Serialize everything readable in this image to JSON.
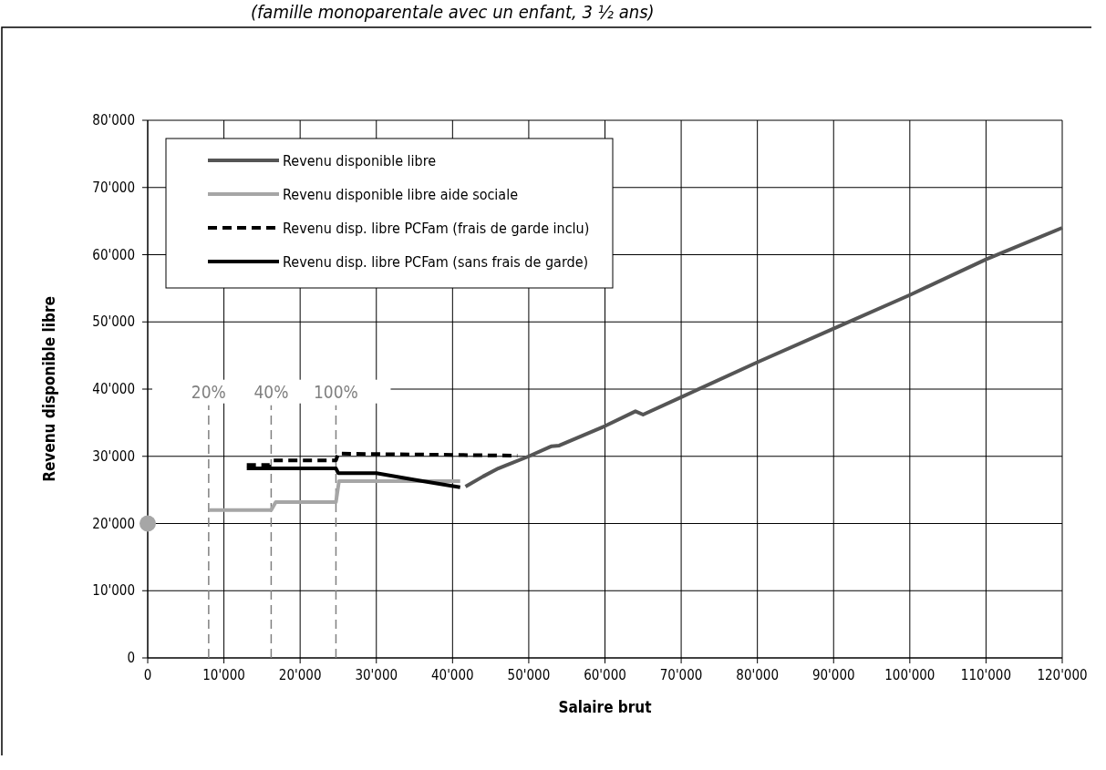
{
  "chart_data": {
    "type": "line",
    "title": "(famille monoparentale avec un enfant, 3 ½ ans)",
    "xlabel": "Salaire brut",
    "ylabel": "Revenu disponible libre",
    "xlim": [
      0,
      120000
    ],
    "xticks": [
      {
        "value": 0,
        "label": "0"
      },
      {
        "value": 10000,
        "label": "10'000"
      },
      {
        "value": 20000,
        "label": "20'000"
      },
      {
        "value": 30000,
        "label": "30'000"
      },
      {
        "value": 40000,
        "label": "40'000"
      },
      {
        "value": 50000,
        "label": "50'000"
      },
      {
        "value": 60000,
        "label": "60'000"
      },
      {
        "value": 70000,
        "label": "70'000"
      },
      {
        "value": 80000,
        "label": "80'000"
      },
      {
        "value": 90000,
        "label": "90'000"
      },
      {
        "value": 100000,
        "label": "100'000"
      },
      {
        "value": 110000,
        "label": "110'000"
      },
      {
        "value": 120000,
        "label": "120'000"
      }
    ],
    "ylim": [
      0,
      80000
    ],
    "yticks": [
      {
        "value": 0,
        "label": "0"
      },
      {
        "value": 10000,
        "label": "10'000"
      },
      {
        "value": 20000,
        "label": "20'000"
      },
      {
        "value": 30000,
        "label": "30'000"
      },
      {
        "value": 40000,
        "label": "40'000"
      },
      {
        "value": 50000,
        "label": "50'000"
      },
      {
        "value": 60000,
        "label": "60'000"
      },
      {
        "value": 70000,
        "label": "70'000"
      },
      {
        "value": 80000,
        "label": "80'000"
      }
    ],
    "grid": true,
    "legend": "top left",
    "marker": "none",
    "series": [
      {
        "name": "Revenu disponible libre",
        "color": "#555555",
        "x": [
          41700,
          44000,
          46000,
          50000,
          53000,
          54000,
          60000,
          64000,
          65000,
          70000,
          80000,
          90000,
          100000,
          110000,
          120000
        ],
        "values": [
          25500,
          27000,
          28200,
          30000,
          31500,
          31600,
          34500,
          36700,
          36200,
          38800,
          44000,
          49000,
          54000,
          59300,
          64000
        ]
      },
      {
        "name": "Revenu disponible libre aide sociale",
        "color": "#a6a6a6",
        "x": [
          8000,
          16200,
          16800,
          24700,
          25100,
          41000
        ],
        "values": [
          22000,
          22000,
          23200,
          23200,
          26300,
          26300
        ]
      },
      {
        "name": "Revenu disp. libre PCFam (frais de garde inclu)",
        "color": "#000000",
        "line_style": "dashed",
        "x": [
          13000,
          16000,
          16500,
          24700,
          25000,
          48500
        ],
        "values": [
          28700,
          28700,
          29400,
          29400,
          30400,
          30100
        ]
      },
      {
        "name": "Revenu disp. libre PCFam (sans frais de garde)",
        "color": "#000000",
        "x": [
          13000,
          24700,
          25000,
          30000,
          35000,
          41000
        ],
        "values": [
          28200,
          28200,
          27500,
          27500,
          26500,
          25400
        ]
      },
      {
        "type": "scatter",
        "color": "#a6a6a6",
        "marker": "circle",
        "x": [
          0
        ],
        "values": [
          20000
        ]
      }
    ],
    "ref_lines": [
      {
        "axis": "x",
        "value": 8000,
        "color": "#808080",
        "line_style": "dashed"
      },
      {
        "axis": "x",
        "value": 16200,
        "color": "#808080",
        "line_style": "dashed"
      },
      {
        "axis": "x",
        "value": 24700,
        "color": "#808080",
        "line_style": "dashed"
      }
    ],
    "annotations": [
      "20%",
      "40%",
      "100%"
    ]
  }
}
